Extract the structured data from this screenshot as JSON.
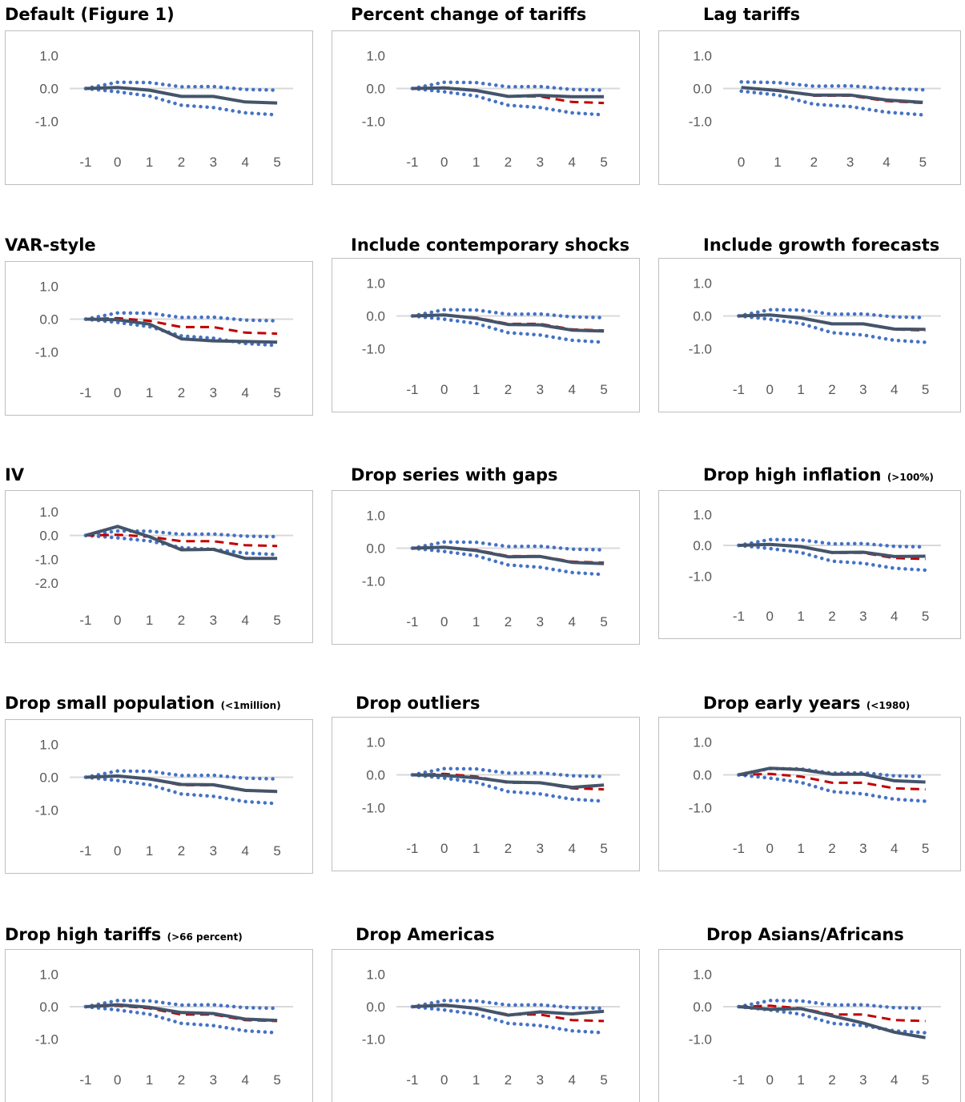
{
  "colors": {
    "estimate": "#44546a",
    "baseline": "#c00000",
    "band": "#4472c4",
    "zero_axis": "#d9d9d9",
    "border": "#bfbfbf",
    "tick_text": "#595959"
  },
  "baseline_series": [
    0.0,
    0.03,
    -0.05,
    -0.24,
    -0.24,
    -0.41,
    -0.44
  ],
  "band_upper": [
    0.0,
    0.19,
    0.18,
    0.05,
    0.06,
    -0.03,
    -0.05
  ],
  "band_lower": [
    0.0,
    -0.1,
    -0.23,
    -0.51,
    -0.58,
    -0.74,
    -0.8
  ],
  "chart_data": [
    {
      "type": "line",
      "title": "Default (Figure 1)",
      "note": "",
      "categories": [
        "-1",
        "0",
        "1",
        "2",
        "3",
        "4",
        "5"
      ],
      "yticks": [
        "1.0",
        "0.0",
        "-1.0"
      ],
      "ylim": [
        -1.4,
        1.4
      ],
      "series": [
        {
          "values": [
            0.0,
            0.03,
            -0.05,
            -0.24,
            -0.24,
            -0.41,
            -0.44
          ]
        }
      ],
      "show_baseline": false
    },
    {
      "type": "line",
      "title": "Percent change of tariffs",
      "note": "",
      "categories": [
        "-1",
        "0",
        "1",
        "2",
        "3",
        "4",
        "5"
      ],
      "yticks": [
        "1.0",
        "0.0",
        "-1.0"
      ],
      "ylim": [
        -1.4,
        1.4
      ],
      "series": [
        {
          "values": [
            0.0,
            0.02,
            -0.06,
            -0.24,
            -0.21,
            -0.25,
            -0.25
          ]
        }
      ],
      "show_baseline": true
    },
    {
      "type": "line",
      "title": "Lag tariffs",
      "note": "",
      "categories": [
        "0",
        "1",
        "2",
        "3",
        "4",
        "5"
      ],
      "yticks": [
        "1.0",
        "0.0",
        "-1.0"
      ],
      "ylim": [
        -1.4,
        1.4
      ],
      "series": [
        {
          "values": [
            0.03,
            -0.06,
            -0.2,
            -0.2,
            -0.35,
            -0.42
          ]
        }
      ],
      "show_baseline": true,
      "baseline_values": [
        0.03,
        -0.05,
        -0.22,
        -0.22,
        -0.38,
        -0.44
      ],
      "band_upper_values": [
        0.2,
        0.18,
        0.07,
        0.08,
        0.0,
        -0.04
      ],
      "band_lower_values": [
        -0.08,
        -0.2,
        -0.48,
        -0.55,
        -0.72,
        -0.8
      ]
    },
    {
      "type": "line",
      "title": "VAR-style",
      "note": "",
      "categories": [
        "-1",
        "0",
        "1",
        "2",
        "3",
        "4",
        "5"
      ],
      "yticks": [
        "1.0",
        "0.0",
        "-1.0"
      ],
      "ylim": [
        -1.4,
        1.4
      ],
      "series": [
        {
          "values": [
            0.0,
            -0.02,
            -0.15,
            -0.6,
            -0.66,
            -0.68,
            -0.7
          ]
        }
      ],
      "show_baseline": true
    },
    {
      "type": "line",
      "title": "Include contemporary shocks",
      "note": "",
      "categories": [
        "-1",
        "0",
        "1",
        "2",
        "3",
        "4",
        "5"
      ],
      "yticks": [
        "1.0",
        "0.0",
        "-1.0"
      ],
      "ylim": [
        -1.4,
        1.4
      ],
      "series": [
        {
          "values": [
            0.0,
            0.03,
            -0.07,
            -0.26,
            -0.27,
            -0.43,
            -0.46
          ]
        }
      ],
      "show_baseline": true
    },
    {
      "type": "line",
      "title": "Include growth forecasts",
      "note": "",
      "categories": [
        "-1",
        "0",
        "1",
        "2",
        "3",
        "4",
        "5"
      ],
      "yticks": [
        "1.0",
        "0.0",
        "-1.0"
      ],
      "ylim": [
        -1.4,
        1.4
      ],
      "series": [
        {
          "values": [
            0.0,
            0.03,
            -0.06,
            -0.24,
            -0.24,
            -0.4,
            -0.41
          ]
        }
      ],
      "show_baseline": true
    },
    {
      "type": "line",
      "title": "IV",
      "note": "",
      "categories": [
        "-1",
        "0",
        "1",
        "2",
        "3",
        "4",
        "5"
      ],
      "yticks": [
        "1.0",
        "0.0",
        "-1.0",
        "-2.0"
      ],
      "ylim": [
        -2.4,
        1.4
      ],
      "series": [
        {
          "values": [
            0.0,
            0.38,
            -0.05,
            -0.6,
            -0.58,
            -0.96,
            -0.96
          ]
        }
      ],
      "show_baseline": true
    },
    {
      "type": "line",
      "title": "Drop series with gaps",
      "note": "",
      "categories": [
        "-1",
        "0",
        "1",
        "2",
        "3",
        "4",
        "5"
      ],
      "yticks": [
        "1.0",
        "0.0",
        "-1.0"
      ],
      "ylim": [
        -1.4,
        1.4
      ],
      "series": [
        {
          "values": [
            0.0,
            0.03,
            -0.07,
            -0.26,
            -0.25,
            -0.43,
            -0.47
          ]
        }
      ],
      "show_baseline": true
    },
    {
      "type": "line",
      "title": "Drop high inflation",
      "note": "(>100%)",
      "categories": [
        "-1",
        "0",
        "1",
        "2",
        "3",
        "4",
        "5"
      ],
      "yticks": [
        "1.0",
        "0.0",
        "-1.0"
      ],
      "ylim": [
        -1.4,
        1.4
      ],
      "series": [
        {
          "values": [
            0.0,
            0.03,
            -0.04,
            -0.23,
            -0.22,
            -0.36,
            -0.35
          ]
        }
      ],
      "show_baseline": true
    },
    {
      "type": "line",
      "title": "Drop small population",
      "note": "(<1million)",
      "categories": [
        "-1",
        "0",
        "1",
        "2",
        "3",
        "4",
        "5"
      ],
      "yticks": [
        "1.0",
        "0.0",
        "-1.0"
      ],
      "ylim": [
        -1.4,
        1.4
      ],
      "series": [
        {
          "values": [
            0.0,
            0.04,
            -0.05,
            -0.22,
            -0.23,
            -0.4,
            -0.43
          ]
        }
      ],
      "show_baseline": true
    },
    {
      "type": "line",
      "title": "Drop outliers",
      "note": "",
      "categories": [
        "-1",
        "0",
        "1",
        "2",
        "3",
        "4",
        "5"
      ],
      "yticks": [
        "1.0",
        "0.0",
        "-1.0"
      ],
      "ylim": [
        -1.4,
        1.4
      ],
      "series": [
        {
          "values": [
            0.0,
            -0.02,
            -0.09,
            -0.22,
            -0.24,
            -0.38,
            -0.31
          ]
        }
      ],
      "show_baseline": true
    },
    {
      "type": "line",
      "title": "Drop early years",
      "note": "(<1980)",
      "categories": [
        "-1",
        "0",
        "1",
        "2",
        "3",
        "4",
        "5"
      ],
      "yticks": [
        "1.0",
        "0.0",
        "-1.0"
      ],
      "ylim": [
        -1.4,
        1.4
      ],
      "series": [
        {
          "values": [
            0.0,
            0.2,
            0.16,
            0.02,
            0.02,
            -0.18,
            -0.22
          ]
        }
      ],
      "show_baseline": true
    },
    {
      "type": "line",
      "title": "Drop high tariffs",
      "note": "(>66 percent)",
      "categories": [
        "-1",
        "0",
        "1",
        "2",
        "3",
        "4",
        "5"
      ],
      "yticks": [
        "1.0",
        "0.0",
        "-1.0"
      ],
      "ylim": [
        -1.4,
        1.4
      ],
      "series": [
        {
          "values": [
            0.0,
            0.06,
            -0.02,
            -0.18,
            -0.21,
            -0.38,
            -0.42
          ]
        }
      ],
      "show_baseline": true
    },
    {
      "type": "line",
      "title": "Drop Americas",
      "note": "",
      "categories": [
        "-1",
        "0",
        "1",
        "2",
        "3",
        "4",
        "5"
      ],
      "yticks": [
        "1.0",
        "0.0",
        "-1.0"
      ],
      "ylim": [
        -1.4,
        1.4
      ],
      "series": [
        {
          "values": [
            0.0,
            0.05,
            -0.05,
            -0.26,
            -0.16,
            -0.22,
            -0.14
          ]
        }
      ],
      "show_baseline": true
    },
    {
      "type": "line",
      "title": "Drop Asians/Africans",
      "note": "",
      "categories": [
        "-1",
        "0",
        "1",
        "2",
        "3",
        "4",
        "5"
      ],
      "yticks": [
        "1.0",
        "0.0",
        "-1.0"
      ],
      "ylim": [
        -1.4,
        1.4
      ],
      "series": [
        {
          "values": [
            0.0,
            -0.08,
            -0.06,
            -0.28,
            -0.5,
            -0.78,
            -0.95
          ]
        }
      ],
      "show_baseline": true
    }
  ]
}
